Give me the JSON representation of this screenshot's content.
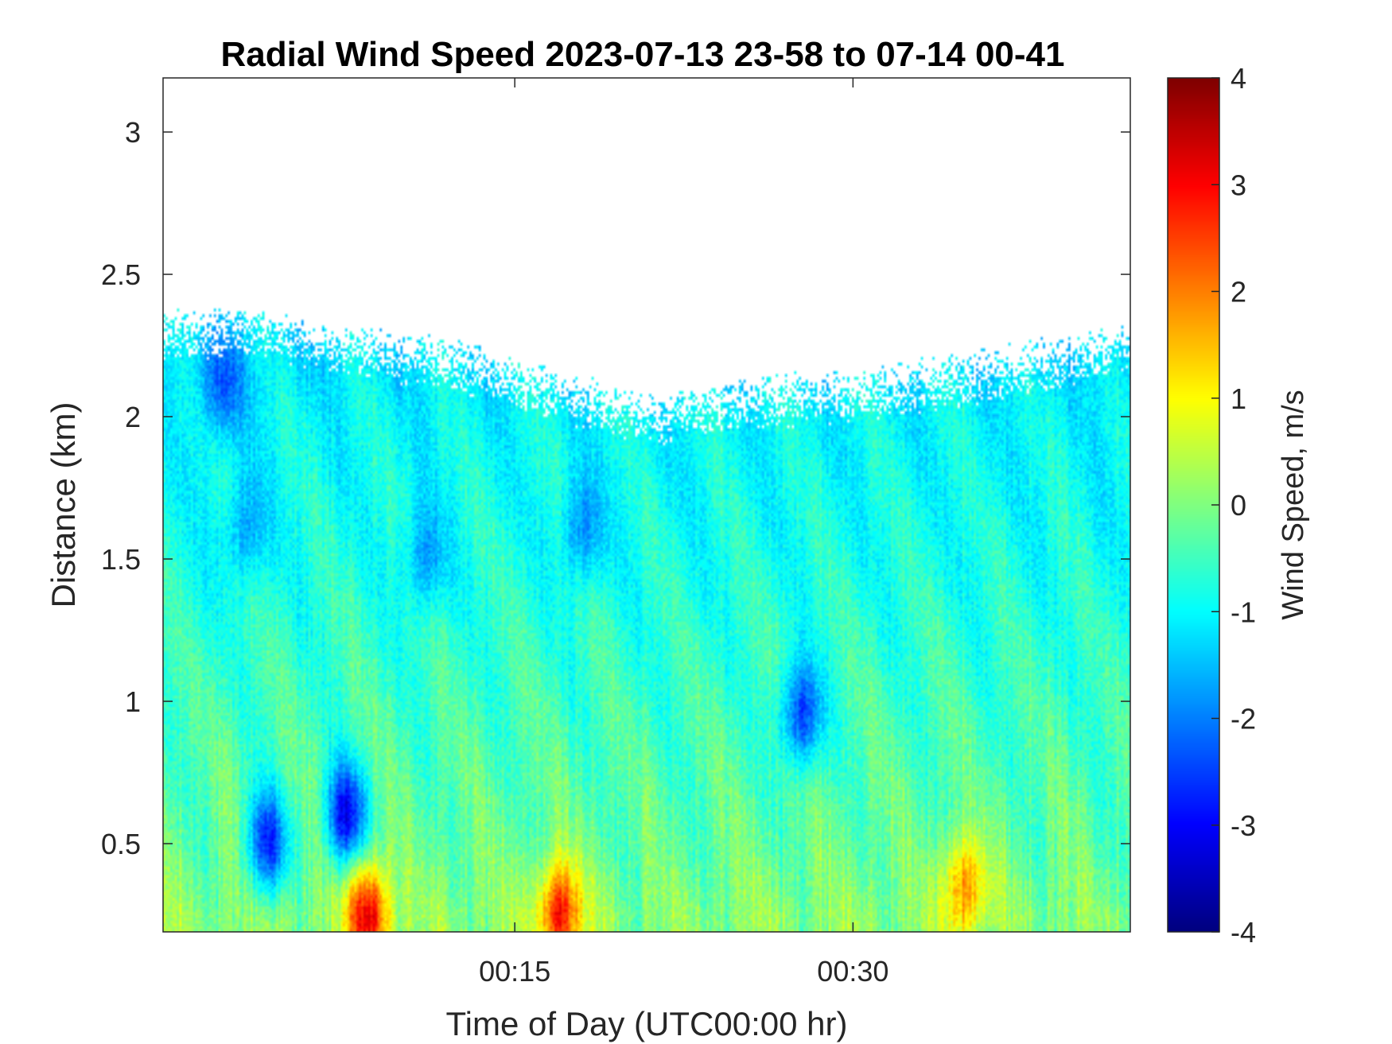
{
  "chart_data": {
    "type": "heatmap",
    "title": "Radial Wind Speed 2023-07-13 23-58 to 07-14 00-41",
    "xlabel": "Time of Day (UTC00:00 hr)",
    "ylabel": "Distance (km)",
    "colorbar_label": "Wind Speed, m/s",
    "colormap": "jet",
    "x_range_minutes": [
      -0.6,
      42.3
    ],
    "x_ticks": [
      {
        "value": 15,
        "label": "00:15"
      },
      {
        "value": 30,
        "label": "00:30"
      }
    ],
    "ylim": [
      0.19,
      3.19
    ],
    "y_ticks": [
      {
        "value": 0.5,
        "label": "0.5"
      },
      {
        "value": 1,
        "label": "1"
      },
      {
        "value": 1.5,
        "label": "1.5"
      },
      {
        "value": 2,
        "label": "2"
      },
      {
        "value": 2.5,
        "label": "2.5"
      },
      {
        "value": 3,
        "label": "3"
      }
    ],
    "clim": [
      -4,
      4
    ],
    "colorbar_ticks": [
      "4",
      "3",
      "2",
      "1",
      "0",
      "-1",
      "-2",
      "-3",
      "-4"
    ],
    "data_ceiling_km": [
      [
        -0.6,
        2.33
      ],
      [
        3,
        2.35
      ],
      [
        8,
        2.28
      ],
      [
        13,
        2.22
      ],
      [
        17,
        2.12
      ],
      [
        21,
        2.04
      ],
      [
        25,
        2.1
      ],
      [
        30,
        2.12
      ],
      [
        35,
        2.18
      ],
      [
        40,
        2.25
      ],
      [
        42.3,
        2.3
      ]
    ],
    "wind_speed_profile": [
      {
        "distance_km": 0.25,
        "mean_m_s": 0.1
      },
      {
        "distance_km": 0.5,
        "mean_m_s": -0.2
      },
      {
        "distance_km": 1.0,
        "mean_m_s": -0.5
      },
      {
        "distance_km": 1.5,
        "mean_m_s": -0.8
      },
      {
        "distance_km": 2.0,
        "mean_m_s": -1.0
      },
      {
        "distance_km": 2.2,
        "mean_m_s": -1.2
      }
    ],
    "features": [
      {
        "x_min": 2,
        "distance_km": 2.1,
        "speed_m_s": -2.3
      },
      {
        "x_min": 3,
        "distance_km": 1.6,
        "speed_m_s": -1.8
      },
      {
        "x_min": 11,
        "distance_km": 1.5,
        "speed_m_s": -1.8
      },
      {
        "x_min": 18,
        "distance_km": 1.6,
        "speed_m_s": -1.9
      },
      {
        "x_min": 27.7,
        "distance_km": 0.95,
        "speed_m_s": -2.5
      },
      {
        "x_min": 7.5,
        "distance_km": 0.6,
        "speed_m_s": -3.0
      },
      {
        "x_min": 4,
        "distance_km": 0.5,
        "speed_m_s": -2.6
      },
      {
        "x_min": 35,
        "distance_km": 0.35,
        "speed_m_s": 2.0
      },
      {
        "x_min": 17,
        "distance_km": 0.25,
        "speed_m_s": 3.0
      },
      {
        "x_min": 8.5,
        "distance_km": 0.25,
        "speed_m_s": 3.2
      }
    ]
  }
}
